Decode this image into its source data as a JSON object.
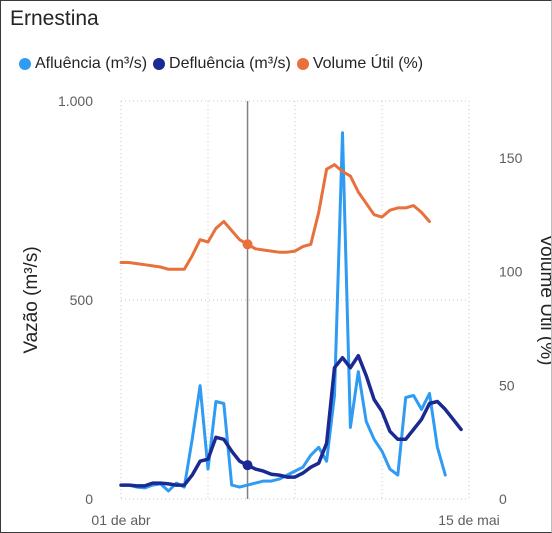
{
  "visual": {
    "title": "Ernestina"
  },
  "colors": {
    "afluencia": "#2f9bf3",
    "defluencia": "#1b2a93",
    "volume": "#e8703a",
    "grid": "#c8c8c8",
    "cursor": "#808080"
  },
  "chart_data": {
    "type": "line",
    "title": "Ernestina",
    "x": [
      1,
      2,
      3,
      4,
      5,
      6,
      7,
      8,
      9,
      10,
      11,
      12,
      13,
      14,
      15,
      16,
      17,
      18,
      19,
      20,
      21,
      22,
      23,
      24,
      25,
      26,
      27,
      28,
      29,
      30,
      31,
      32,
      33,
      34,
      35,
      36,
      37,
      38,
      39,
      40,
      41,
      42,
      43,
      44,
      45
    ],
    "xticks": [
      {
        "x": 1,
        "label": "01 de abr"
      },
      {
        "x": 45,
        "label": "15 de mai"
      }
    ],
    "xlim": [
      1,
      45
    ],
    "ylabel": "Vazão (m³/s)",
    "y2label": "Volume Útil (%)",
    "ylim": [
      0,
      1000
    ],
    "y2lim": [
      0,
      175
    ],
    "yticks": [
      0,
      500,
      1000
    ],
    "yticklabels": [
      "0",
      "500",
      "1.000"
    ],
    "y2ticks": [
      0,
      50,
      100,
      150
    ],
    "y2ticklabels": [
      "0",
      "50",
      "100",
      "150"
    ],
    "grid": true,
    "legend_position": "top",
    "cursor_x": 17,
    "series": [
      {
        "name": "Afluência (m³/s)",
        "axis": "left",
        "values": [
          35,
          35,
          30,
          28,
          35,
          38,
          20,
          40,
          30,
          150,
          285,
          75,
          245,
          240,
          35,
          30,
          35,
          40,
          45,
          45,
          50,
          60,
          70,
          80,
          110,
          130,
          95,
          260,
          920,
          180,
          320,
          195,
          150,
          120,
          75,
          60,
          255,
          260,
          225,
          265,
          130,
          60,
          null,
          null,
          null
        ]
      },
      {
        "name": "Defluência (m³/s)",
        "axis": "left",
        "values": [
          35,
          35,
          33,
          33,
          40,
          40,
          38,
          35,
          35,
          60,
          95,
          100,
          155,
          150,
          120,
          95,
          85,
          75,
          70,
          62,
          60,
          55,
          55,
          65,
          80,
          90,
          140,
          330,
          355,
          330,
          360,
          310,
          250,
          220,
          170,
          150,
          150,
          175,
          200,
          240,
          245,
          225,
          200,
          175,
          null
        ]
      },
      {
        "name": "Volume Útil (%)",
        "axis": "right",
        "values": [
          104,
          104,
          103.5,
          103,
          102.5,
          102,
          101,
          101,
          101,
          107,
          114,
          113,
          119,
          122,
          118,
          114,
          112,
          110,
          109.5,
          109,
          108.5,
          108.5,
          109,
          111,
          112,
          126,
          145,
          147,
          144,
          142,
          135,
          130,
          125,
          124,
          127,
          128,
          128,
          129,
          126,
          122,
          null,
          null,
          null,
          null,
          null
        ]
      }
    ]
  }
}
